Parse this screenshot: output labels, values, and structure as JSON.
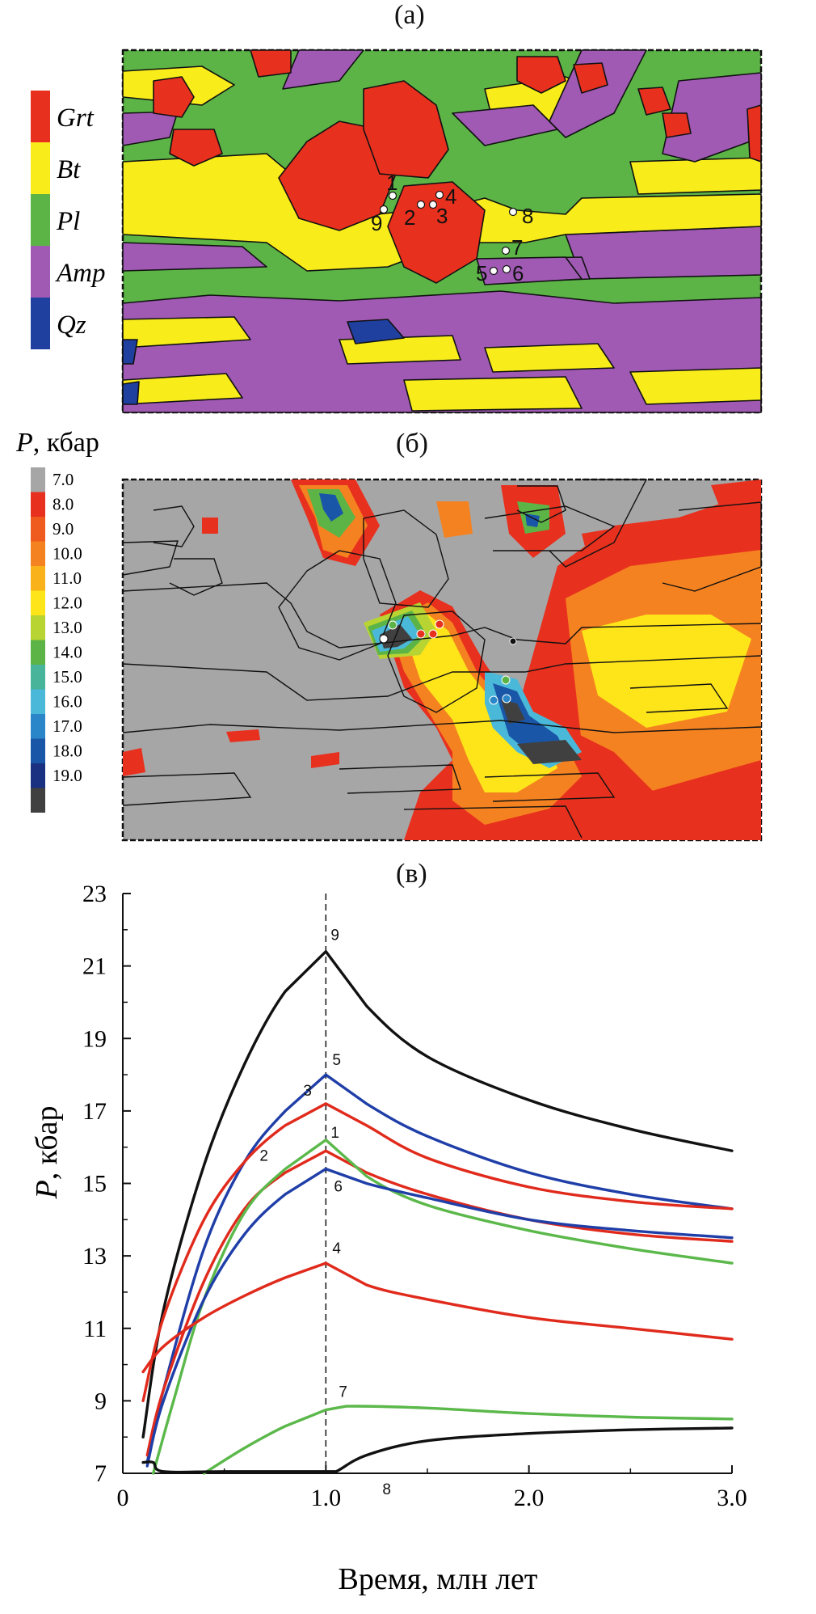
{
  "panels": {
    "a": {
      "label": "(а)"
    },
    "b": {
      "label": "(б)",
      "legend_title_var": "P",
      "legend_title_unit": ", кбар",
      "legend_ticks": [
        "7.0",
        "8.0",
        "9.0",
        "10.0",
        "11.0",
        "12.0",
        "13.0",
        "14.0",
        "15.0",
        "16.0",
        "17.0",
        "18.0",
        "19.0"
      ]
    },
    "c": {
      "label": "(в)"
    }
  },
  "mineral_legend": [
    {
      "name": "Grt",
      "color": "#e8301e"
    },
    {
      "name": "Bt",
      "color": "#f8ec1a"
    },
    {
      "name": "Pl",
      "color": "#5cb447"
    },
    {
      "name": "Amp",
      "color": "#a05ab4"
    },
    {
      "name": "Qz",
      "color": "#2040a0"
    }
  ],
  "point_labels": [
    "1",
    "2",
    "3",
    "4",
    "5",
    "6",
    "7",
    "8",
    "9"
  ],
  "pressure_colors": [
    "#a6a6a6",
    "#e8301e",
    "#ef5a1e",
    "#f58220",
    "#f9b21a",
    "#fde51a",
    "#b8d432",
    "#5cb447",
    "#48b49a",
    "#4ab8d8",
    "#2a86c8",
    "#1a56a8",
    "#1a3080",
    "#404040"
  ],
  "chart_data": {
    "type": "line",
    "xlabel": "Время, млн лет",
    "ylabel_var": "P",
    "ylabel_unit": ", кбар",
    "xlim": [
      0,
      3.0
    ],
    "ylim": [
      7,
      23
    ],
    "xticks": [
      "0",
      "1.0",
      "2.0",
      "3.0"
    ],
    "yticks": [
      "7",
      "9",
      "11",
      "13",
      "15",
      "17",
      "19",
      "21",
      "23"
    ],
    "vline_x": 1.0,
    "series": [
      {
        "name": "9",
        "color": "#111111",
        "x": [
          0.1,
          0.2,
          0.4,
          0.6,
          0.8,
          1.0,
          1.2,
          1.5,
          2.0,
          2.5,
          3.0
        ],
        "y": [
          8.0,
          11.5,
          15.5,
          18.3,
          20.3,
          21.4,
          19.9,
          18.5,
          17.3,
          16.5,
          15.9
        ]
      },
      {
        "name": "5",
        "color": "#1f3ea8",
        "x": [
          0.12,
          0.2,
          0.4,
          0.6,
          0.8,
          1.0,
          1.2,
          1.5,
          2.0,
          2.5,
          3.0
        ],
        "y": [
          7.3,
          9.3,
          13.2,
          15.6,
          17.0,
          18.0,
          17.2,
          16.3,
          15.3,
          14.7,
          14.3
        ]
      },
      {
        "name": "3",
        "color": "#e02a1c",
        "x": [
          0.1,
          0.2,
          0.4,
          0.6,
          0.8,
          1.0,
          1.2,
          1.5,
          2.0,
          2.5,
          3.0
        ],
        "y": [
          9.0,
          11.3,
          14.0,
          15.6,
          16.6,
          17.2,
          16.6,
          15.7,
          14.9,
          14.5,
          14.3
        ]
      },
      {
        "name": "1",
        "color": "#e02a1c",
        "x": [
          0.12,
          0.2,
          0.4,
          0.6,
          0.8,
          1.0,
          1.2,
          1.5,
          2.0,
          2.5,
          3.0
        ],
        "y": [
          7.5,
          9.3,
          12.3,
          14.3,
          15.3,
          15.9,
          15.3,
          14.7,
          14.0,
          13.6,
          13.4
        ]
      },
      {
        "name": "2",
        "color": "#5bb84a",
        "x": [
          0.15,
          0.25,
          0.4,
          0.6,
          0.8,
          1.0,
          1.2,
          1.5,
          2.0,
          2.5,
          3.0
        ],
        "y": [
          7.0,
          9.0,
          11.8,
          14.2,
          15.4,
          16.2,
          15.2,
          14.4,
          13.7,
          13.2,
          12.8
        ]
      },
      {
        "name": "6",
        "color": "#1f3ea8",
        "x": [
          0.12,
          0.2,
          0.4,
          0.6,
          0.8,
          1.0,
          1.2,
          1.5,
          2.0,
          2.5,
          3.0
        ],
        "y": [
          7.2,
          9.0,
          11.8,
          13.6,
          14.7,
          15.4,
          15.0,
          14.6,
          14.0,
          13.7,
          13.5
        ]
      },
      {
        "name": "4",
        "color": "#e02a1c",
        "x": [
          0.1,
          0.2,
          0.4,
          0.6,
          0.8,
          1.0,
          1.2,
          1.5,
          2.0,
          2.5,
          3.0
        ],
        "y": [
          9.8,
          10.5,
          11.3,
          11.9,
          12.4,
          12.8,
          12.2,
          11.8,
          11.3,
          11.0,
          10.7
        ]
      },
      {
        "name": "7",
        "color": "#5bb84a",
        "x": [
          0.4,
          0.6,
          0.8,
          1.0,
          1.1,
          1.5,
          2.0,
          2.5,
          3.0
        ],
        "y": [
          7.0,
          7.7,
          8.3,
          8.75,
          8.85,
          8.8,
          8.65,
          8.55,
          8.5
        ]
      },
      {
        "name": "8",
        "color": "#111111",
        "x": [
          0.1,
          0.15,
          0.2,
          0.5,
          1.0,
          1.05,
          1.2,
          1.5,
          2.0,
          2.5,
          3.0
        ],
        "y": [
          7.3,
          7.3,
          7.05,
          7.05,
          7.05,
          7.05,
          7.5,
          7.9,
          8.1,
          8.2,
          8.25
        ]
      }
    ],
    "series_labels": [
      "9",
      "5",
      "3",
      "1",
      "2",
      "6",
      "4",
      "7",
      "8"
    ]
  }
}
